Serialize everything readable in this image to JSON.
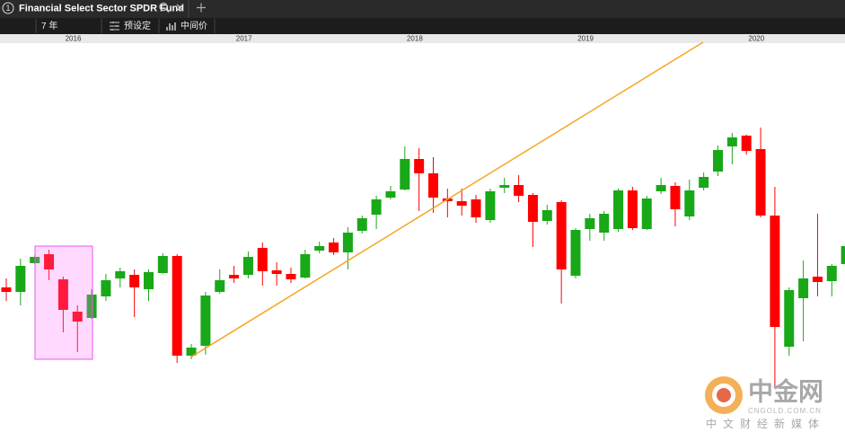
{
  "tab": {
    "index": "1",
    "title": "Financial Select Sector SPDR Fund"
  },
  "toolbar": {
    "period": "7 年",
    "preset": "预设定",
    "price": "中间价"
  },
  "chart_data": {
    "type": "candlestick",
    "categories": [
      null,
      null,
      null,
      null,
      null,
      null,
      null,
      null,
      null,
      null,
      null,
      null,
      null,
      null,
      null,
      null,
      null,
      null,
      null,
      null,
      null,
      null,
      null,
      null,
      null,
      null,
      null,
      null,
      null,
      null,
      null,
      null,
      null,
      null,
      null,
      null,
      null,
      null,
      null,
      null,
      null,
      null,
      null,
      null,
      null,
      null,
      null,
      null,
      null,
      null,
      null,
      null,
      null,
      null,
      null,
      null,
      null,
      null,
      null,
      null
    ],
    "open": [
      18.0,
      17.5,
      20.7,
      21.7,
      18.9,
      15.3,
      14.6,
      17.0,
      19.0,
      19.4,
      17.8,
      19.6,
      21.5,
      10.4,
      11.5,
      17.5,
      19.4,
      19.4,
      22.4,
      19.9,
      19.5,
      19.1,
      22.1,
      23.0,
      21.9,
      24.3,
      26.1,
      28.0,
      28.9,
      32.3,
      30.7,
      27.9,
      27.6,
      27.8,
      25.5,
      29.1,
      29.4,
      28.3,
      25.4,
      27.5,
      19.3,
      24.5,
      24.1,
      24.5,
      28.8,
      24.5,
      28.7,
      29.3,
      25.9,
      29.1,
      30.9,
      33.7,
      34.9,
      33.4,
      26.0,
      11.4,
      16.8,
      19.2,
      18.7,
      20.6
    ],
    "high": [
      19.0,
      21.2,
      21.6,
      22.2,
      19.2,
      16.0,
      17.8,
      19.5,
      20.2,
      20.0,
      20.0,
      21.8,
      21.7,
      11.7,
      17.5,
      20.0,
      20.4,
      22.0,
      23.0,
      20.8,
      20.2,
      22.2,
      23.1,
      23.5,
      24.7,
      26.0,
      28.2,
      29.3,
      33.7,
      33.5,
      32.5,
      29.0,
      29.0,
      28.3,
      29.0,
      30.2,
      30.5,
      28.5,
      27.2,
      27.7,
      24.6,
      26.2,
      26.5,
      29.0,
      29.2,
      28.2,
      30.2,
      29.7,
      30.0,
      30.8,
      33.8,
      35.2,
      35.0,
      35.8,
      29.2,
      18.0,
      21.0,
      26.2,
      20.6,
      23.0
    ],
    "low": [
      16.5,
      16.0,
      20.6,
      18.8,
      13.0,
      10.8,
      14.5,
      16.5,
      18.0,
      14.7,
      16.5,
      19.5,
      9.6,
      10.0,
      10.5,
      17.3,
      18.5,
      19.0,
      18.2,
      18.2,
      18.5,
      19.0,
      21.8,
      21.6,
      20.0,
      24.0,
      24.5,
      27.8,
      28.8,
      26.5,
      26.3,
      25.8,
      26.0,
      25.2,
      25.2,
      28.5,
      27.5,
      22.5,
      25.0,
      16.2,
      19.0,
      23.2,
      23.2,
      24.2,
      24.4,
      24.4,
      28.4,
      24.8,
      25.5,
      28.8,
      30.4,
      31.7,
      32.8,
      25.8,
      7.0,
      10.4,
      12.0,
      17.0,
      17.0,
      20.4
    ],
    "close": [
      17.5,
      20.4,
      21.4,
      20.0,
      15.5,
      14.2,
      17.2,
      18.8,
      19.8,
      18.0,
      19.7,
      21.5,
      10.4,
      11.3,
      17.1,
      18.8,
      19.0,
      21.4,
      19.8,
      19.5,
      18.9,
      21.7,
      22.6,
      21.9,
      24.1,
      25.7,
      27.8,
      28.7,
      32.3,
      30.7,
      28.0,
      27.6,
      27.1,
      25.8,
      28.7,
      29.4,
      28.2,
      25.3,
      26.6,
      20.0,
      24.4,
      25.7,
      26.2,
      28.8,
      24.6,
      27.9,
      29.4,
      26.7,
      28.8,
      30.3,
      33.3,
      34.7,
      33.2,
      26.0,
      13.6,
      17.7,
      19.0,
      18.6,
      20.4,
      22.6
    ],
    "ylim": [
      0.9,
      45.2
    ],
    "xticks": [
      {
        "value": 4.7,
        "label": "2016"
      },
      {
        "value": 16.7,
        "label": "2017"
      },
      {
        "value": 28.7,
        "label": "2018"
      },
      {
        "value": 40.7,
        "label": "2019"
      },
      {
        "value": 52.7,
        "label": "2020"
      }
    ],
    "up_color": "#18a818",
    "down_color": "#ff0000"
  },
  "watermark": {
    "brand": "中金网",
    "domain": "CNGOLD.COM.CN",
    "slogan": "中文财经新媒体"
  }
}
